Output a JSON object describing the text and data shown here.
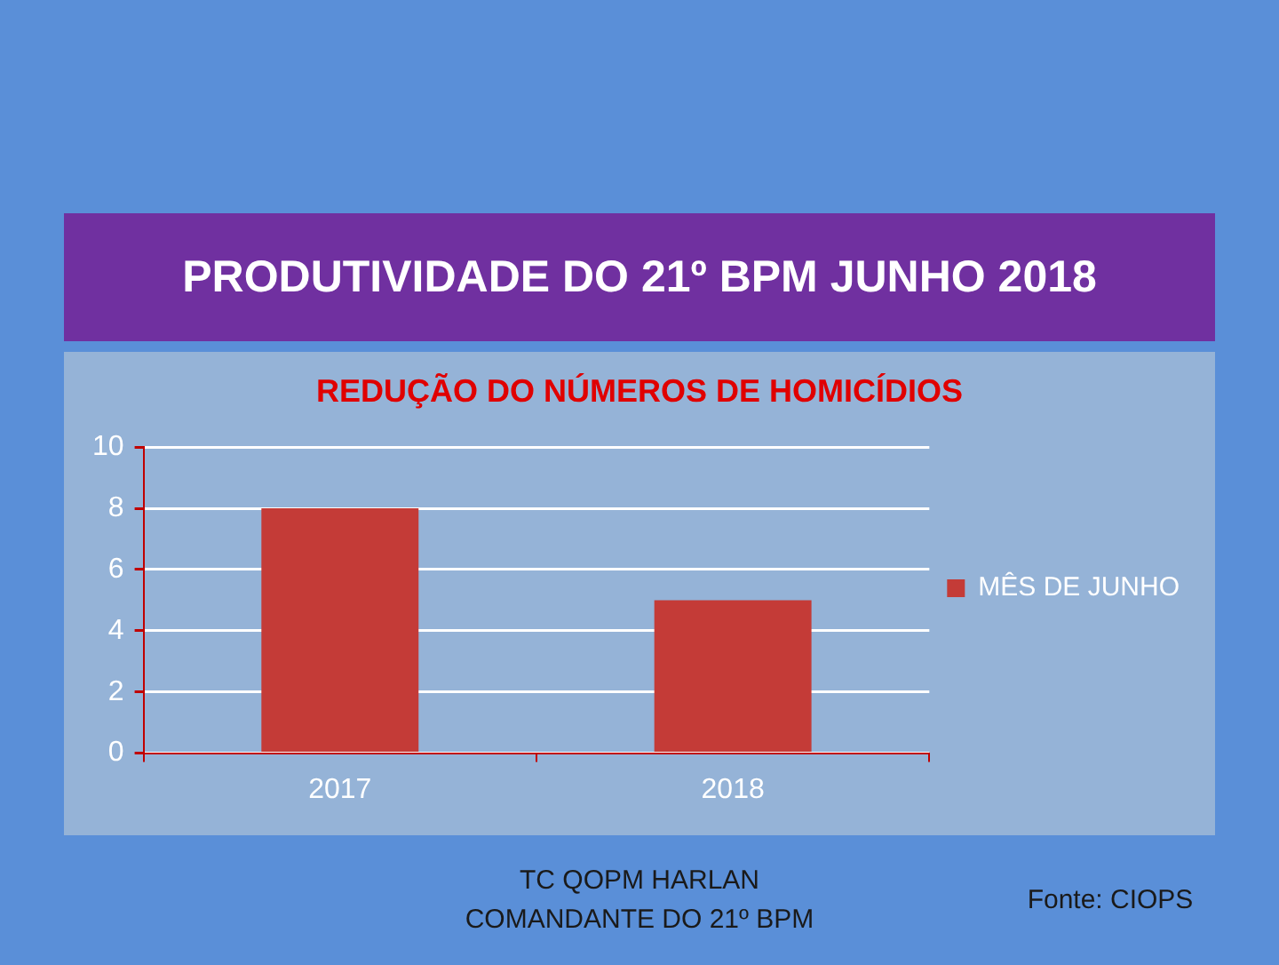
{
  "chart_data": {
    "type": "bar",
    "title": "PRODUTIVIDADE DO 21º BPM JUNHO 2018",
    "subtitle": "REDUÇÃO DO NÚMEROS DE HOMICÍDIOS",
    "categories": [
      "2017",
      "2018"
    ],
    "series": [
      {
        "name": "MÊS DE JUNHO",
        "color": "#c43b37",
        "values": [
          8,
          5
        ]
      }
    ],
    "ylim": [
      0,
      10
    ],
    "yticks": [
      0,
      2,
      4,
      6,
      8,
      10
    ],
    "grid": "y",
    "legend": "right",
    "annotations": [
      "TC QOPM HARLAN",
      "COMANDANTE DO 21º BPM",
      "Fonte: CIOPS"
    ]
  }
}
